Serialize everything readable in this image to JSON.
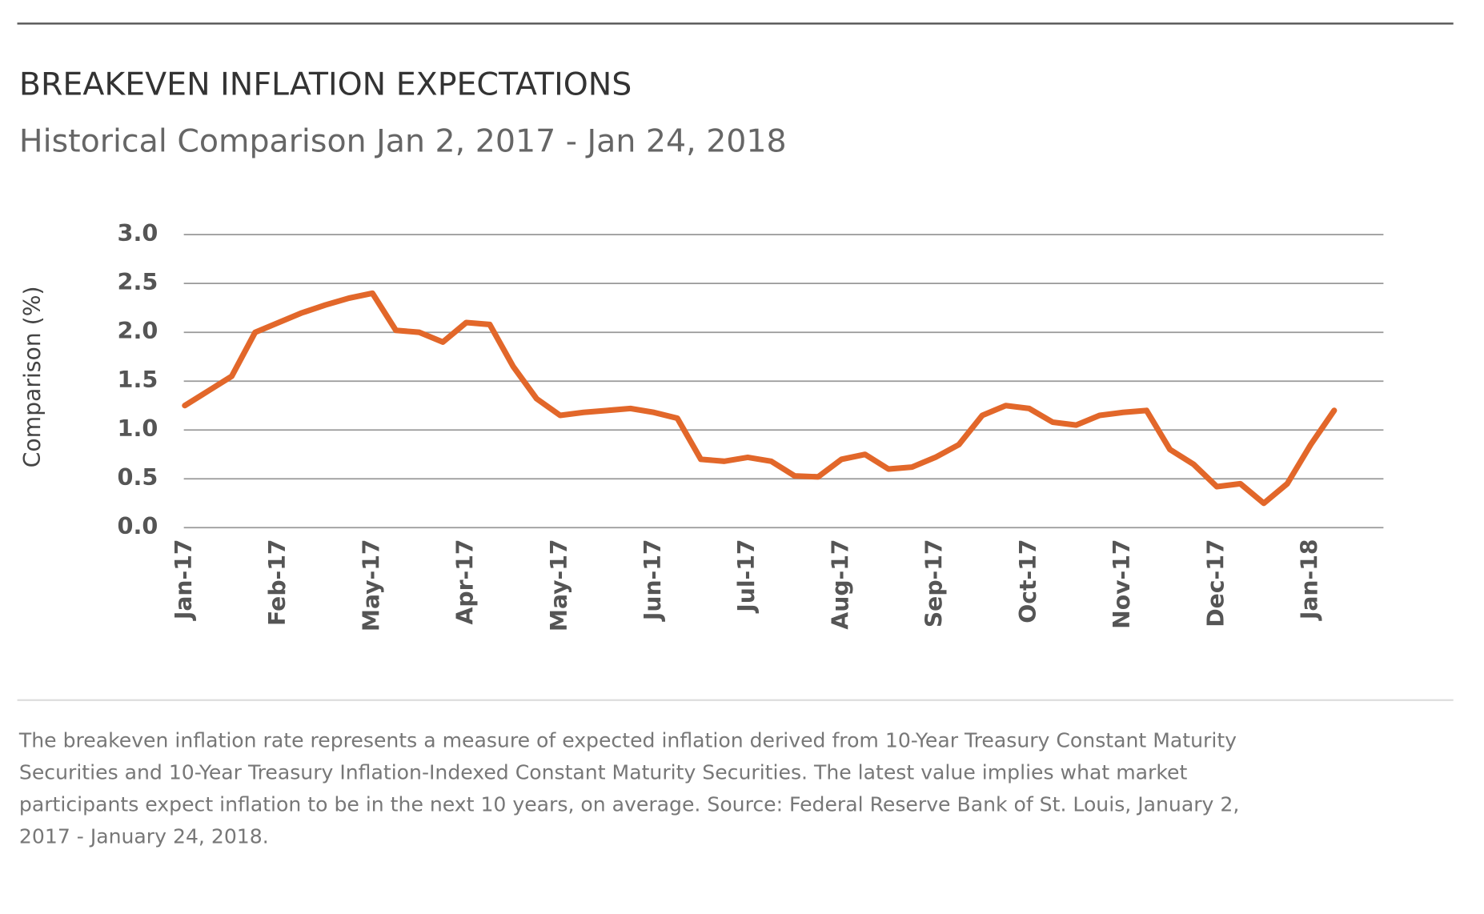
{
  "chart_data": {
    "type": "line",
    "title": "BREAKEVEN INFLATION EXPECTATIONS",
    "subtitle": "Historical Comparison Jan 2, 2017 - Jan 24, 2018",
    "y_label": "Comparison (%)",
    "categories": [
      "Jan-17",
      null,
      null,
      null,
      "Feb-17",
      null,
      null,
      null,
      "May-17",
      null,
      null,
      null,
      "Apr-17",
      null,
      null,
      null,
      "May-17",
      null,
      null,
      null,
      "Jun-17",
      null,
      null,
      null,
      "Jul-17",
      null,
      null,
      null,
      "Aug-17",
      null,
      null,
      null,
      "Sep-17",
      null,
      null,
      null,
      "Oct-17",
      null,
      null,
      null,
      "Nov-17",
      null,
      null,
      null,
      "Dec-17",
      null,
      null,
      null,
      "Jan-18",
      null
    ],
    "values": [
      1.25,
      1.4,
      1.55,
      2.0,
      2.1,
      2.2,
      2.28,
      2.35,
      2.4,
      2.02,
      2.0,
      1.9,
      2.1,
      2.08,
      1.65,
      1.32,
      1.15,
      1.18,
      1.2,
      1.22,
      1.18,
      1.12,
      0.7,
      0.68,
      0.72,
      0.68,
      0.53,
      0.52,
      0.7,
      0.75,
      0.6,
      0.62,
      0.72,
      0.85,
      1.15,
      1.25,
      1.22,
      1.08,
      1.05,
      1.15,
      1.18,
      1.2,
      0.8,
      0.65,
      0.42,
      0.45,
      0.25,
      0.45,
      0.85,
      1.2
    ],
    "color": "#e2672a",
    "ylim": [
      0,
      3
    ],
    "yticks": [
      {
        "value": 0,
        "label": "0.0"
      },
      0.5,
      {
        "value": 1,
        "label": "1.0"
      },
      1.5,
      {
        "value": 2,
        "label": "2.0"
      },
      2.5,
      {
        "value": 3,
        "label": "3.0"
      }
    ],
    "grid": true,
    "caption": [
      "The breakeven inflation rate represents a measure of expected inflation derived from 10-Year Treasury Constant Maturity",
      "Securities and 10-Year Treasury Inflation-Indexed Constant Maturity Securities. The latest value implies what market",
      "participants expect inflation to be in the next 10 years, on average. Source: Federal Reserve Bank of St. Louis, January 2,",
      "2017 - January 24, 2018."
    ]
  }
}
